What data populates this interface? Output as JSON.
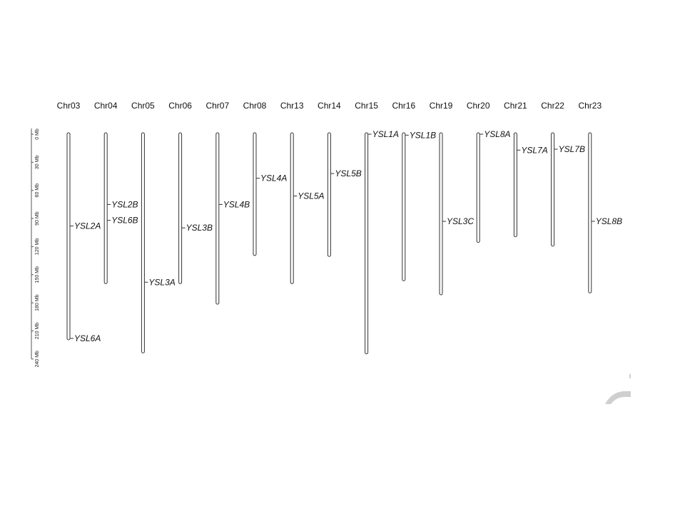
{
  "scale": {
    "ticks": [
      {
        "value": 0,
        "label": "0 Mb"
      },
      {
        "value": 30,
        "label": "30 Mb"
      },
      {
        "value": 60,
        "label": "60 Mb"
      },
      {
        "value": 90,
        "label": "90 Mb"
      },
      {
        "value": 120,
        "label": "120 Mb"
      },
      {
        "value": 150,
        "label": "150 Mb"
      },
      {
        "value": 180,
        "label": "180 Mb"
      },
      {
        "value": 210,
        "label": "210 Mb"
      },
      {
        "value": 240,
        "label": "240 Mb"
      }
    ]
  },
  "chromosomes": [
    {
      "name": "Chr03",
      "length_mb": 218,
      "genes": [
        {
          "name": "YSL2A",
          "pos_mb": 98
        },
        {
          "name": "YSL6A",
          "pos_mb": 218
        }
      ]
    },
    {
      "name": "Chr04",
      "length_mb": 158,
      "genes": [
        {
          "name": "YSL2B",
          "pos_mb": 75
        },
        {
          "name": "YSL6B",
          "pos_mb": 92
        }
      ]
    },
    {
      "name": "Chr05",
      "length_mb": 232,
      "genes": [
        {
          "name": "YSL3A",
          "pos_mb": 158
        }
      ]
    },
    {
      "name": "Chr06",
      "length_mb": 158,
      "genes": [
        {
          "name": "YSL3B",
          "pos_mb": 100
        }
      ]
    },
    {
      "name": "Chr07",
      "length_mb": 180,
      "genes": [
        {
          "name": "YSL4B",
          "pos_mb": 75
        }
      ]
    },
    {
      "name": "Chr08",
      "length_mb": 128,
      "genes": [
        {
          "name": "YSL4A",
          "pos_mb": 47
        }
      ]
    },
    {
      "name": "Chr13",
      "length_mb": 158,
      "genes": [
        {
          "name": "YSL5A",
          "pos_mb": 66
        }
      ]
    },
    {
      "name": "Chr14",
      "length_mb": 129,
      "genes": [
        {
          "name": "YSL5B",
          "pos_mb": 42
        }
      ]
    },
    {
      "name": "Chr15",
      "length_mb": 233,
      "genes": [
        {
          "name": "YSL1A",
          "pos_mb": 0
        }
      ]
    },
    {
      "name": "Chr16",
      "length_mb": 155,
      "genes": [
        {
          "name": "YSL1B",
          "pos_mb": 1
        }
      ]
    },
    {
      "name": "Chr19",
      "length_mb": 170,
      "genes": [
        {
          "name": "YSL3C",
          "pos_mb": 93
        }
      ]
    },
    {
      "name": "Chr20",
      "length_mb": 114,
      "genes": [
        {
          "name": "YSL8A",
          "pos_mb": 0
        }
      ]
    },
    {
      "name": "Chr21",
      "length_mb": 108,
      "genes": [
        {
          "name": "YSL7A",
          "pos_mb": 17
        }
      ]
    },
    {
      "name": "Chr22",
      "length_mb": 118,
      "genes": [
        {
          "name": "YSL7B",
          "pos_mb": 16
        }
      ]
    },
    {
      "name": "Chr23",
      "length_mb": 168,
      "genes": [
        {
          "name": "YSL8B",
          "pos_mb": 93
        }
      ]
    }
  ],
  "colors": {
    "bar_stroke": "#333333",
    "bar_fill": "#ffffff",
    "text": "#111111"
  }
}
